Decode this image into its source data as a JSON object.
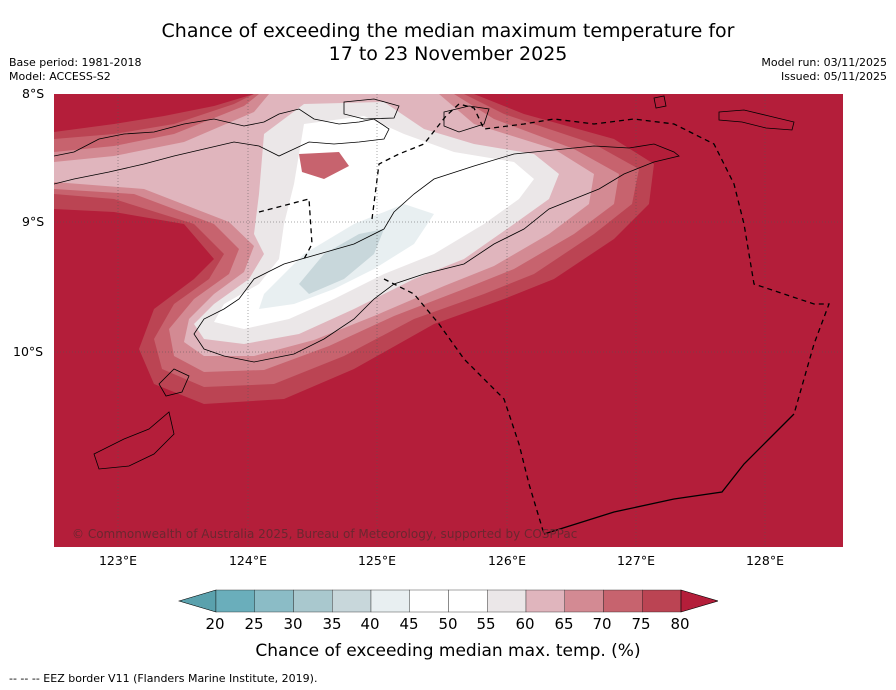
{
  "title": {
    "line1": "Chance of exceeding the median maximum temperature for",
    "line2": "17 to 23 November 2025"
  },
  "meta": {
    "base_period": "Base period: 1981-2018",
    "model": "Model: ACCESS-S2",
    "model_run": "Model run: 03/11/2025",
    "issued": "Issued: 05/11/2025"
  },
  "axes": {
    "lat_labels": [
      "8°S",
      "9°S",
      "10°S"
    ],
    "lon_labels": [
      "123°E",
      "124°E",
      "125°E",
      "126°E",
      "127°E",
      "128°E"
    ]
  },
  "map": {
    "background_category": "80+",
    "copyright": "© Commonwealth of Australia 2025, Bureau of Meteorology, supported by COSPPac"
  },
  "colorbar": {
    "ticks": [
      "20",
      "25",
      "30",
      "35",
      "40",
      "45",
      "50",
      "55",
      "60",
      "65",
      "70",
      "75",
      "80"
    ],
    "colors": [
      "#5aa1ad",
      "#6aaebb",
      "#8bbcc6",
      "#a9c8ce",
      "#c8d7db",
      "#e8eff1",
      "#ffffff",
      "#ffffff",
      "#ebe7e8",
      "#e0b5bd",
      "#d38a93",
      "#c7636e",
      "#bb4453",
      "#b41e3a"
    ],
    "label": "Chance of exceeding median max. temp. (%)"
  },
  "footer": "--  --  -- EEZ border V11 (Flanders Marine Institute, 2019)."
}
